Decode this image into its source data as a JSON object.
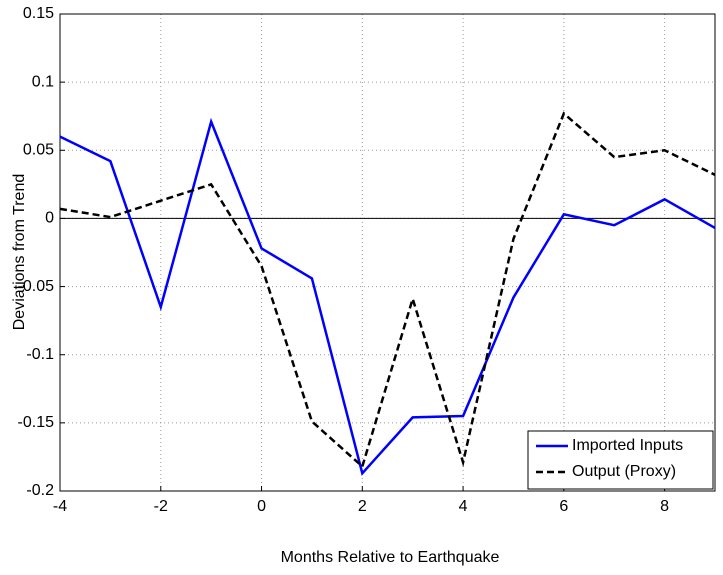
{
  "chart_data": {
    "type": "line",
    "xlabel": "Months Relative to Earthquake",
    "ylabel": "Deviations from Trend",
    "x": [
      -4,
      -3,
      -2,
      -1,
      0,
      1,
      2,
      3,
      4,
      5,
      6,
      7,
      8,
      9
    ],
    "series": [
      {
        "name": "Imported Inputs",
        "color": "#0000ff",
        "dash": "solid",
        "values": [
          0.06,
          0.042,
          -0.065,
          0.071,
          -0.022,
          -0.044,
          -0.187,
          -0.146,
          -0.145,
          -0.058,
          0.003,
          -0.005,
          0.014,
          -0.007
        ]
      },
      {
        "name": "Output (Proxy)",
        "color": "#000000",
        "dash": "dashed",
        "values": [
          0.007,
          0.001,
          0.013,
          0.025,
          -0.035,
          -0.149,
          -0.182,
          -0.059,
          -0.179,
          -0.015,
          0.077,
          0.045,
          0.05,
          0.032
        ]
      }
    ],
    "xlim": [
      -4,
      9
    ],
    "xticks": [
      -4,
      -2,
      0,
      2,
      4,
      6,
      8
    ],
    "ylim": [
      -0.2,
      0.15
    ],
    "yticks": [
      -0.2,
      -0.15,
      -0.1,
      -0.05,
      0,
      0.05,
      0.1,
      0.15
    ],
    "grid": true,
    "legend": "lower right"
  }
}
